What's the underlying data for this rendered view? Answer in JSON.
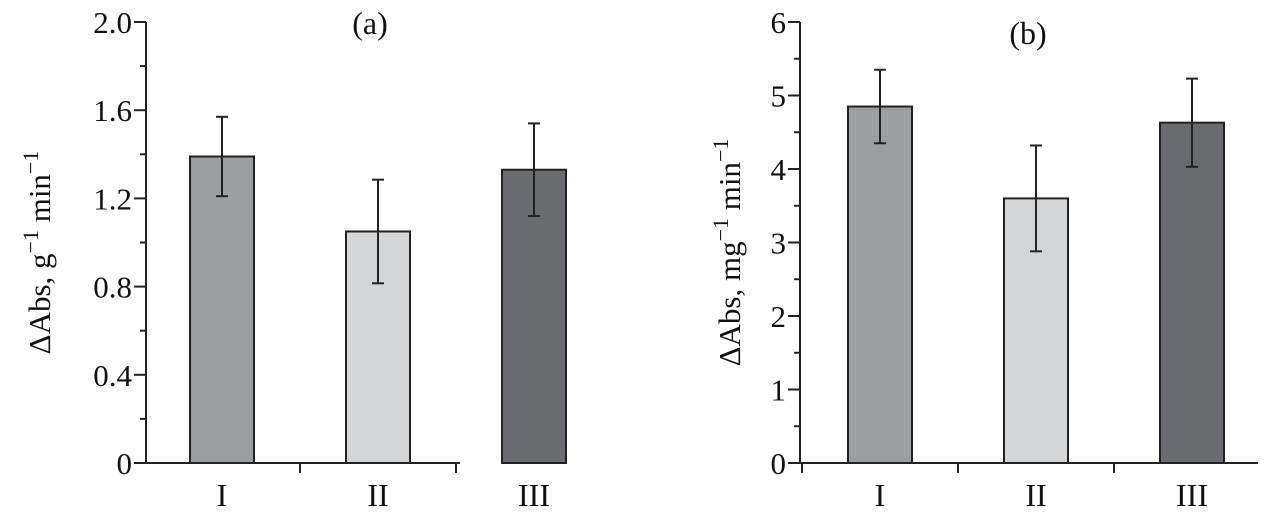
{
  "chart_data": [
    {
      "type": "bar",
      "panel_label": "(a)",
      "categories": [
        "I",
        "II",
        "III"
      ],
      "values": [
        1.39,
        1.05,
        1.33
      ],
      "errors": [
        0.18,
        0.235,
        0.21
      ],
      "colors": [
        "#9d9ea2",
        "#d4d5d7",
        "#6b6c70"
      ],
      "ylabel": "ΔAbs, g",
      "ylabel_sup1": "−1",
      "ylabel_mid": " min",
      "ylabel_sup2": "−1",
      "ylim": [
        0,
        2.0
      ],
      "yticks": [
        "0",
        "0.4",
        "0.8",
        "1.2",
        "1.6",
        "2.0"
      ],
      "grid": false
    },
    {
      "type": "bar",
      "panel_label": "(b)",
      "categories": [
        "I",
        "II",
        "III"
      ],
      "values": [
        4.85,
        3.6,
        4.63
      ],
      "errors": [
        0.5,
        0.72,
        0.6
      ],
      "colors": [
        "#9d9ea2",
        "#d4d5d7",
        "#6b6c70"
      ],
      "ylabel": "ΔAbs, mg",
      "ylabel_sup1": "−1",
      "ylabel_mid": " min",
      "ylabel_sup2": "−1",
      "ylim": [
        0,
        6
      ],
      "yticks": [
        "0",
        "1",
        "2",
        "3",
        "4",
        "5",
        "6"
      ],
      "grid": false
    }
  ]
}
